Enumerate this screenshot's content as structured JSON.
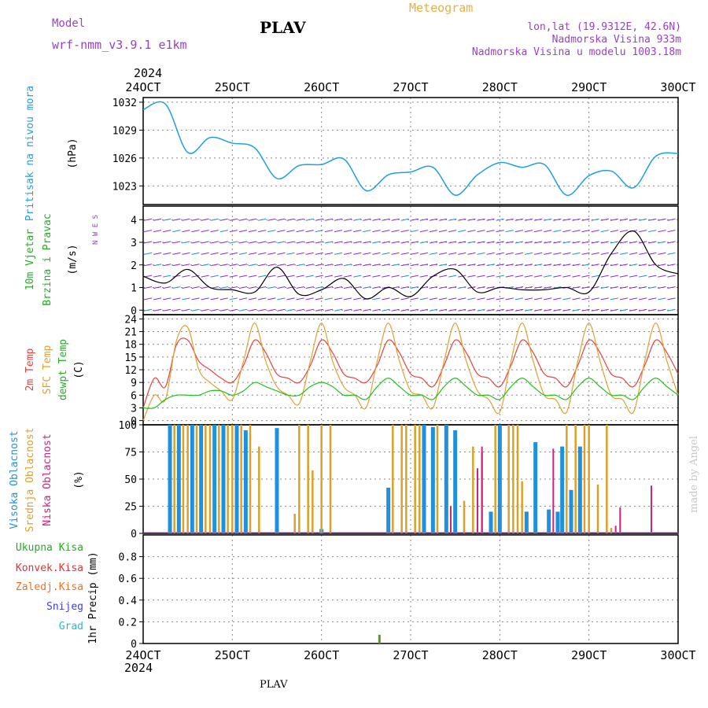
{
  "header": {
    "model_label": "Model",
    "model_name": "wrf-nmm_v3.9.1 e1km",
    "station": "PLAV",
    "product": "Meteogram",
    "lonlat": "lon,lat (19.9312E, 42.6N)",
    "elevation": "Nadmorska Visina 933m",
    "model_elevation": "Nadmorska Visina u modelu 1003.18m",
    "year_top": "2024",
    "year_bottom": "2024",
    "footer_station": "PLAV",
    "credit": "made by Angel"
  },
  "colors": {
    "pressure": "#1ea0e0",
    "temp2m": "#e84040",
    "sfc": "#e0a030",
    "dew": "#20c020",
    "high_cloud": "#1e90dc",
    "mid_cloud": "#dca028",
    "low_cloud": "#d02080",
    "total_precip": "#20b020",
    "conv_precip": "#e83030",
    "frz_precip": "#f07020",
    "snow": "#4040e0",
    "graupel": "#20c0c0",
    "wind_arrow": "#8a2be2"
  },
  "chart_data": [
    {
      "type": "line",
      "panel": "pressure",
      "ylabel": [
        "Pritisak na nivou mora",
        "(hPa)"
      ],
      "ylim": [
        1021,
        1032.5
      ],
      "yticks": [
        1023,
        1026,
        1029,
        1032
      ],
      "x_unit": "days since 24OCT 00UTC",
      "x_ticks": [
        "24OCT",
        "25OCT",
        "26OCT",
        "27OCT",
        "28OCT",
        "29OCT",
        "30OCT"
      ],
      "x": [
        0.0,
        0.25,
        0.5,
        0.75,
        1.0,
        1.25,
        1.5,
        1.75,
        2.0,
        2.25,
        2.5,
        2.75,
        3.0,
        3.25,
        3.5,
        3.75,
        4.0,
        4.25,
        4.5,
        4.75,
        5.0,
        5.25,
        5.5,
        5.75,
        6.0
      ],
      "values": [
        1031.2,
        1031.8,
        1026.6,
        1028.2,
        1027.6,
        1027.1,
        1023.8,
        1025.2,
        1025.3,
        1025.9,
        1022.5,
        1024.2,
        1024.5,
        1025.0,
        1022.0,
        1024.2,
        1025.5,
        1025.0,
        1025.3,
        1022.0,
        1024.1,
        1024.6,
        1022.8,
        1026.2,
        1026.5
      ]
    },
    {
      "type": "line",
      "panel": "wind",
      "ylabel": [
        "10m Vjetar",
        "Brzina i Pravac",
        "(m/s)"
      ],
      "compass": "N W E S",
      "ylim": [
        -0.2,
        4.6
      ],
      "yticks": [
        0,
        1,
        2,
        3,
        4
      ],
      "x": [
        0.0,
        0.25,
        0.5,
        0.75,
        1.0,
        1.25,
        1.5,
        1.75,
        2.0,
        2.25,
        2.5,
        2.75,
        3.0,
        3.25,
        3.5,
        3.75,
        4.0,
        4.25,
        4.5,
        4.75,
        5.0,
        5.25,
        5.5,
        5.75,
        6.0
      ],
      "values": [
        1.5,
        1.2,
        1.8,
        1.0,
        0.9,
        0.8,
        1.9,
        0.7,
        0.9,
        1.4,
        0.5,
        1.0,
        0.6,
        1.5,
        1.8,
        0.8,
        1.0,
        0.9,
        0.9,
        1.0,
        0.8,
        2.5,
        3.5,
        2.0,
        1.6
      ]
    },
    {
      "type": "line",
      "panel": "temperature",
      "ylabel": [
        "2m Temp",
        "SFC Temp",
        "dewpt Temp",
        "(C)"
      ],
      "ylim": [
        -1,
        25
      ],
      "yticks": [
        0,
        3,
        6,
        9,
        12,
        15,
        18,
        21,
        24
      ],
      "x": [
        0.0,
        0.125,
        0.25,
        0.375,
        0.5,
        0.625,
        0.75,
        0.875,
        1.0,
        1.125,
        1.25,
        1.375,
        1.5,
        1.625,
        1.75,
        1.875,
        2.0,
        2.125,
        2.25,
        2.375,
        2.5,
        2.625,
        2.75,
        2.875,
        3.0,
        3.125,
        3.25,
        3.375,
        3.5,
        3.625,
        3.75,
        3.875,
        4.0,
        4.125,
        4.25,
        4.375,
        4.5,
        4.625,
        4.75,
        4.875,
        5.0,
        5.125,
        5.25,
        5.375,
        5.5,
        5.625,
        5.75,
        5.875,
        6.0
      ],
      "series": [
        {
          "name": "2m Temp",
          "values": [
            3,
            10,
            8,
            18,
            19,
            14,
            12,
            10,
            9,
            13,
            19,
            16,
            11,
            10,
            9,
            13,
            19,
            16,
            11,
            10,
            9,
            13,
            19,
            16,
            11,
            10,
            8,
            13,
            19,
            16,
            11,
            10,
            8,
            13,
            19,
            16,
            11,
            10,
            8,
            13,
            19,
            16,
            11,
            10,
            8,
            13,
            19,
            16,
            11
          ]
        },
        {
          "name": "SFC Temp",
          "values": [
            0,
            6,
            5,
            19,
            22,
            12,
            9,
            7,
            5,
            14,
            23,
            14,
            8,
            6,
            4,
            14,
            23,
            14,
            8,
            6,
            3,
            14,
            23,
            14,
            7,
            6,
            3,
            14,
            23,
            14,
            7,
            5,
            2,
            14,
            23,
            14,
            6,
            5,
            2,
            14,
            23,
            14,
            6,
            5,
            2,
            14,
            23,
            14,
            6
          ]
        },
        {
          "name": "dewpt Temp",
          "values": [
            3,
            3,
            5,
            6,
            6,
            6,
            7,
            7,
            6,
            7,
            9,
            8,
            7,
            6,
            6,
            8,
            9,
            8,
            6,
            6,
            5,
            8,
            10,
            8,
            6,
            6,
            5,
            8,
            10,
            8,
            6,
            6,
            5,
            8,
            10,
            8,
            6,
            6,
            5,
            8,
            10,
            8,
            6,
            6,
            5,
            8,
            10,
            8,
            6
          ]
        }
      ]
    },
    {
      "type": "bar",
      "panel": "cloud",
      "ylabel": [
        "Visoka Oblacnost",
        "Srednja Oblacnost",
        "Niska Oblacnost",
        "(%)"
      ],
      "ylim": [
        0,
        100
      ],
      "yticks": [
        0,
        25,
        50,
        75,
        100
      ],
      "series": [
        {
          "name": "Visoka Oblacnost",
          "x": [
            0.3,
            0.4,
            0.55,
            0.65,
            0.8,
            0.9,
            1.05,
            1.15,
            1.5,
            2.0,
            2.75,
            3.15,
            3.25,
            3.4,
            3.5,
            3.9,
            4.0,
            4.3,
            4.4,
            4.55,
            4.65,
            4.7,
            4.8,
            4.9
          ],
          "values": [
            100,
            100,
            100,
            100,
            100,
            100,
            100,
            95,
            97,
            4,
            42,
            100,
            98,
            100,
            95,
            20,
            100,
            20,
            84,
            22,
            20,
            80,
            40,
            80
          ]
        },
        {
          "name": "Srednja Oblacnost",
          "x": [
            0.35,
            0.45,
            0.5,
            0.6,
            0.7,
            0.75,
            0.85,
            0.95,
            1.0,
            1.1,
            1.2,
            1.3,
            1.7,
            1.75,
            1.85,
            1.9,
            2.0,
            2.1,
            2.8,
            2.9,
            2.95,
            3.05,
            3.1,
            3.3,
            3.6,
            3.7,
            3.8,
            3.95,
            4.1,
            4.15,
            4.2,
            4.25,
            4.75,
            4.85,
            4.95,
            5.0,
            5.1,
            5.2,
            5.25
          ],
          "values": [
            100,
            100,
            100,
            100,
            100,
            100,
            100,
            100,
            100,
            100,
            100,
            80,
            18,
            100,
            100,
            58,
            100,
            100,
            100,
            100,
            100,
            100,
            100,
            100,
            30,
            80,
            75,
            100,
            100,
            100,
            100,
            48,
            100,
            100,
            100,
            100,
            45,
            100,
            5
          ]
        },
        {
          "name": "Niska Oblacnost",
          "x": [
            3.45,
            3.75,
            3.8,
            4.6,
            5.3,
            5.35,
            5.7
          ],
          "values": [
            25,
            60,
            80,
            78,
            7,
            24,
            44
          ]
        }
      ]
    },
    {
      "type": "bar",
      "panel": "precipitation",
      "ylabel": [
        "1hr Precip (mm)"
      ],
      "legend": [
        "Ukupna Kisa",
        "Konvek.Kisa",
        "Zaledj.Kisa",
        "Snijeg",
        "Grad"
      ],
      "ylim": [
        0,
        1.0
      ],
      "yticks": [
        0,
        0.2,
        0.4,
        0.6,
        0.8
      ],
      "x": [
        2.65
      ],
      "values": [
        0.08
      ]
    }
  ]
}
